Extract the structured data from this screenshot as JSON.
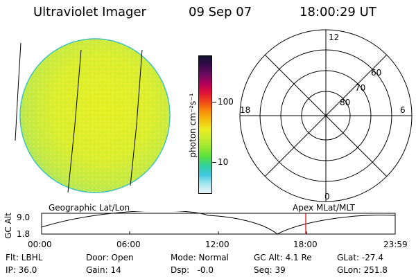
{
  "header": {
    "title": "Ultraviolet Imager",
    "date": "09 Sep 07",
    "time": "18:00:29 UT"
  },
  "colorbar": {
    "label": "photon cm⁻²s⁻¹",
    "ticks": [
      "100",
      "10"
    ],
    "colors": [
      "#101030",
      "#3a0a4a",
      "#6a0a60",
      "#b0005a",
      "#e0103a",
      "#f04818",
      "#f88a08",
      "#f4c010",
      "#ecec20",
      "#c8ec30",
      "#98e830",
      "#58e040",
      "#30d0a0",
      "#40c8e0",
      "#a8e8f0",
      "#e8f4f8"
    ]
  },
  "polar": {
    "mlt_labels": [
      "12",
      "18",
      "6",
      "0"
    ],
    "lat_labels": [
      "60",
      "70",
      "80"
    ]
  },
  "timeline": {
    "ylabel": "GC Alt",
    "yticks": [
      "9.0",
      "1.8"
    ],
    "left_label": "Geographic Lat/Lon",
    "right_label": "Apex MLat/MLT",
    "xticks": [
      "00:00",
      "06:00",
      "12:00",
      "18:00",
      "23:59"
    ],
    "marker_color": "#e00000"
  },
  "status": {
    "flt": "Flt: LBHL",
    "ip": "IP: 36.0",
    "door": "Door: Open",
    "gain": "Gain: 14",
    "mode": "Mode: Normal",
    "dsp": "Dsp:   -0.0",
    "gcalt": "GC Alt: 4.1 Re",
    "seq": "Seq: 39",
    "glat": "GLat: -27.4",
    "glon": "GLon: 251.8"
  }
}
